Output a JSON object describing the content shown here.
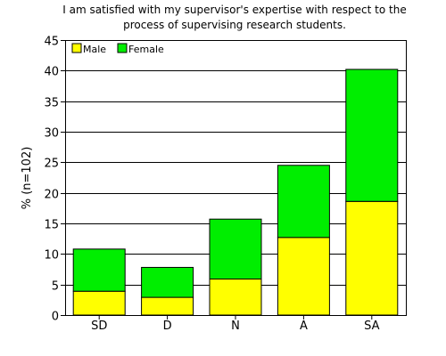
{
  "chart_data": {
    "type": "bar",
    "stacked": true,
    "title_line1": "I am satisfied with my supervisor's expertise with respect to the",
    "title_line2": "process of supervising research students.",
    "xlabel": "",
    "ylabel": "% (n=102)",
    "categories": [
      "SD",
      "D",
      "N",
      "A",
      "SA"
    ],
    "series": [
      {
        "name": "Male",
        "color": "#ffff00",
        "values": [
          3.9,
          2.9,
          5.9,
          12.7,
          18.6
        ]
      },
      {
        "name": "Female",
        "color": "#00ee00",
        "values": [
          6.9,
          4.9,
          9.8,
          11.8,
          21.6
        ]
      }
    ],
    "ylim": [
      0,
      45
    ],
    "yticks": [
      0,
      5,
      10,
      15,
      20,
      25,
      30,
      35,
      40,
      45
    ],
    "grid": true,
    "legend_position": "top-left"
  }
}
